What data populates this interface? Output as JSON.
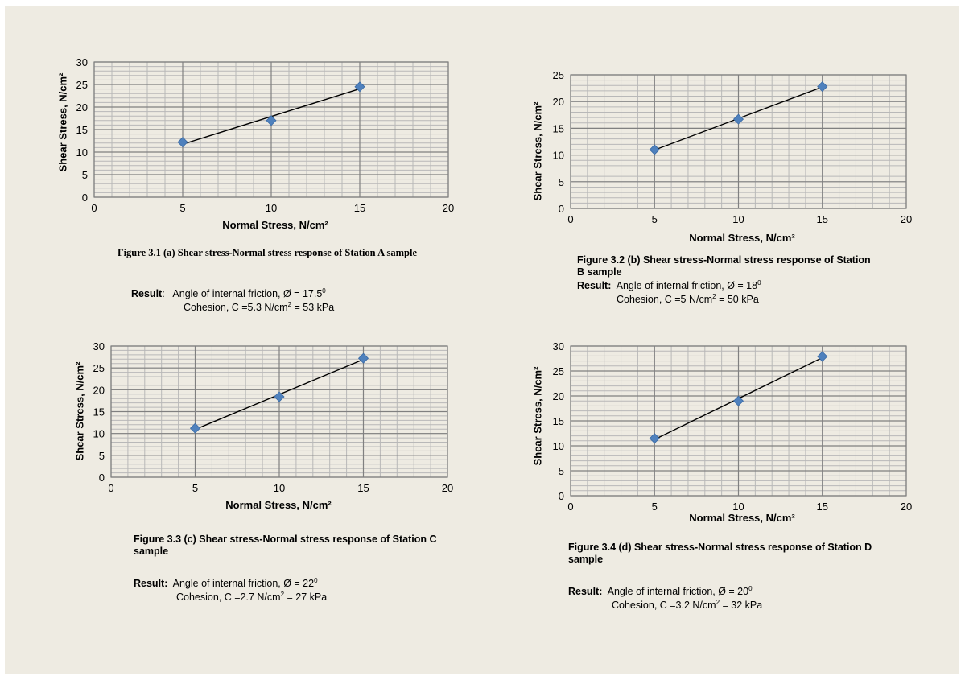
{
  "colors": {
    "background": "#eeebe2",
    "marker": "#4f81bd",
    "grid_major": "#808080",
    "grid_minor": "#b8b8b8",
    "line": "#000000"
  },
  "chart_data": [
    {
      "type": "scatter",
      "xlabel": "Normal Stress, N/cm²",
      "ylabel": "Shear Stress, N/cm²",
      "xlim": [
        0,
        20
      ],
      "ylim": [
        0,
        30
      ],
      "xticks": [
        "0",
        "5",
        "10",
        "15",
        "20"
      ],
      "yticks": [
        "0",
        "5",
        "10",
        "15",
        "20",
        "25",
        "30"
      ],
      "grid": true,
      "trendline": true,
      "x": [
        5,
        10,
        15
      ],
      "y": [
        12.2,
        17.0,
        24.5
      ]
    },
    {
      "type": "scatter",
      "xlabel": "Normal Stress, N/cm²",
      "ylabel": "Shear Stress, N/cm²",
      "xlim": [
        0,
        20
      ],
      "ylim": [
        0,
        25
      ],
      "xticks": [
        "0",
        "5",
        "10",
        "15",
        "20"
      ],
      "yticks": [
        "0",
        "5",
        "10",
        "15",
        "20",
        "25"
      ],
      "grid": true,
      "trendline": true,
      "x": [
        5,
        10,
        15
      ],
      "y": [
        11.0,
        16.7,
        22.8
      ]
    },
    {
      "type": "scatter",
      "xlabel": "Normal Stress, N/cm²",
      "ylabel": "Shear Stress, N/cm²",
      "xlim": [
        0,
        20
      ],
      "ylim": [
        0,
        30
      ],
      "xticks": [
        "0",
        "5",
        "10",
        "15",
        "20"
      ],
      "yticks": [
        "0",
        "5",
        "10",
        "15",
        "20",
        "25",
        "30"
      ],
      "grid": true,
      "trendline": true,
      "x": [
        5,
        10,
        15
      ],
      "y": [
        11.2,
        18.4,
        27.2
      ]
    },
    {
      "type": "scatter",
      "xlabel": "Normal Stress, N/cm²",
      "ylabel": "Shear Stress, N/cm²",
      "xlim": [
        0,
        20
      ],
      "ylim": [
        0,
        30
      ],
      "xticks": [
        "0",
        "5",
        "10",
        "15",
        "20"
      ],
      "yticks": [
        "0",
        "5",
        "10",
        "15",
        "20",
        "25",
        "30"
      ],
      "grid": true,
      "trendline": true,
      "x": [
        5,
        10,
        15
      ],
      "y": [
        11.5,
        19.0,
        27.9
      ]
    }
  ],
  "figures": [
    {
      "caption": "Figure 3.1 (a) Shear stress-Normal stress response of Station A sample",
      "result_label": "Result",
      "friction_text": "Angle of internal friction, Ø = 17.5",
      "friction_sup": "0",
      "cohesion_pre": "Cohesion, C =5.3 N/cm",
      "cohesion_sup": "2",
      "cohesion_post": " = 53 kPa"
    },
    {
      "caption": "Figure 3.2 (b) Shear stress-Normal stress response of Station B sample",
      "result_label": "Result:",
      "friction_text": "Angle of internal friction, Ø = 18",
      "friction_sup": "0",
      "cohesion_pre": "Cohesion, C =5 N/cm",
      "cohesion_sup": "2",
      "cohesion_post": " = 50 kPa"
    },
    {
      "caption": "Figure 3.3 (c) Shear stress-Normal stress response of Station C sample",
      "result_label": "Result:",
      "friction_text": "Angle of internal friction, Ø = 22",
      "friction_sup": "0",
      "cohesion_pre": "Cohesion, C =2.7 N/cm",
      "cohesion_sup": "2",
      "cohesion_post": " = 27 kPa"
    },
    {
      "caption": "Figure 3.4 (d) Shear stress-Normal stress response of Station D sample",
      "result_label": "Result:",
      "friction_text": "Angle of internal friction, Ø = 20",
      "friction_sup": "0",
      "cohesion_pre": "Cohesion, C =3.2 N/cm",
      "cohesion_sup": "2",
      "cohesion_post": " = 32 kPa"
    }
  ]
}
